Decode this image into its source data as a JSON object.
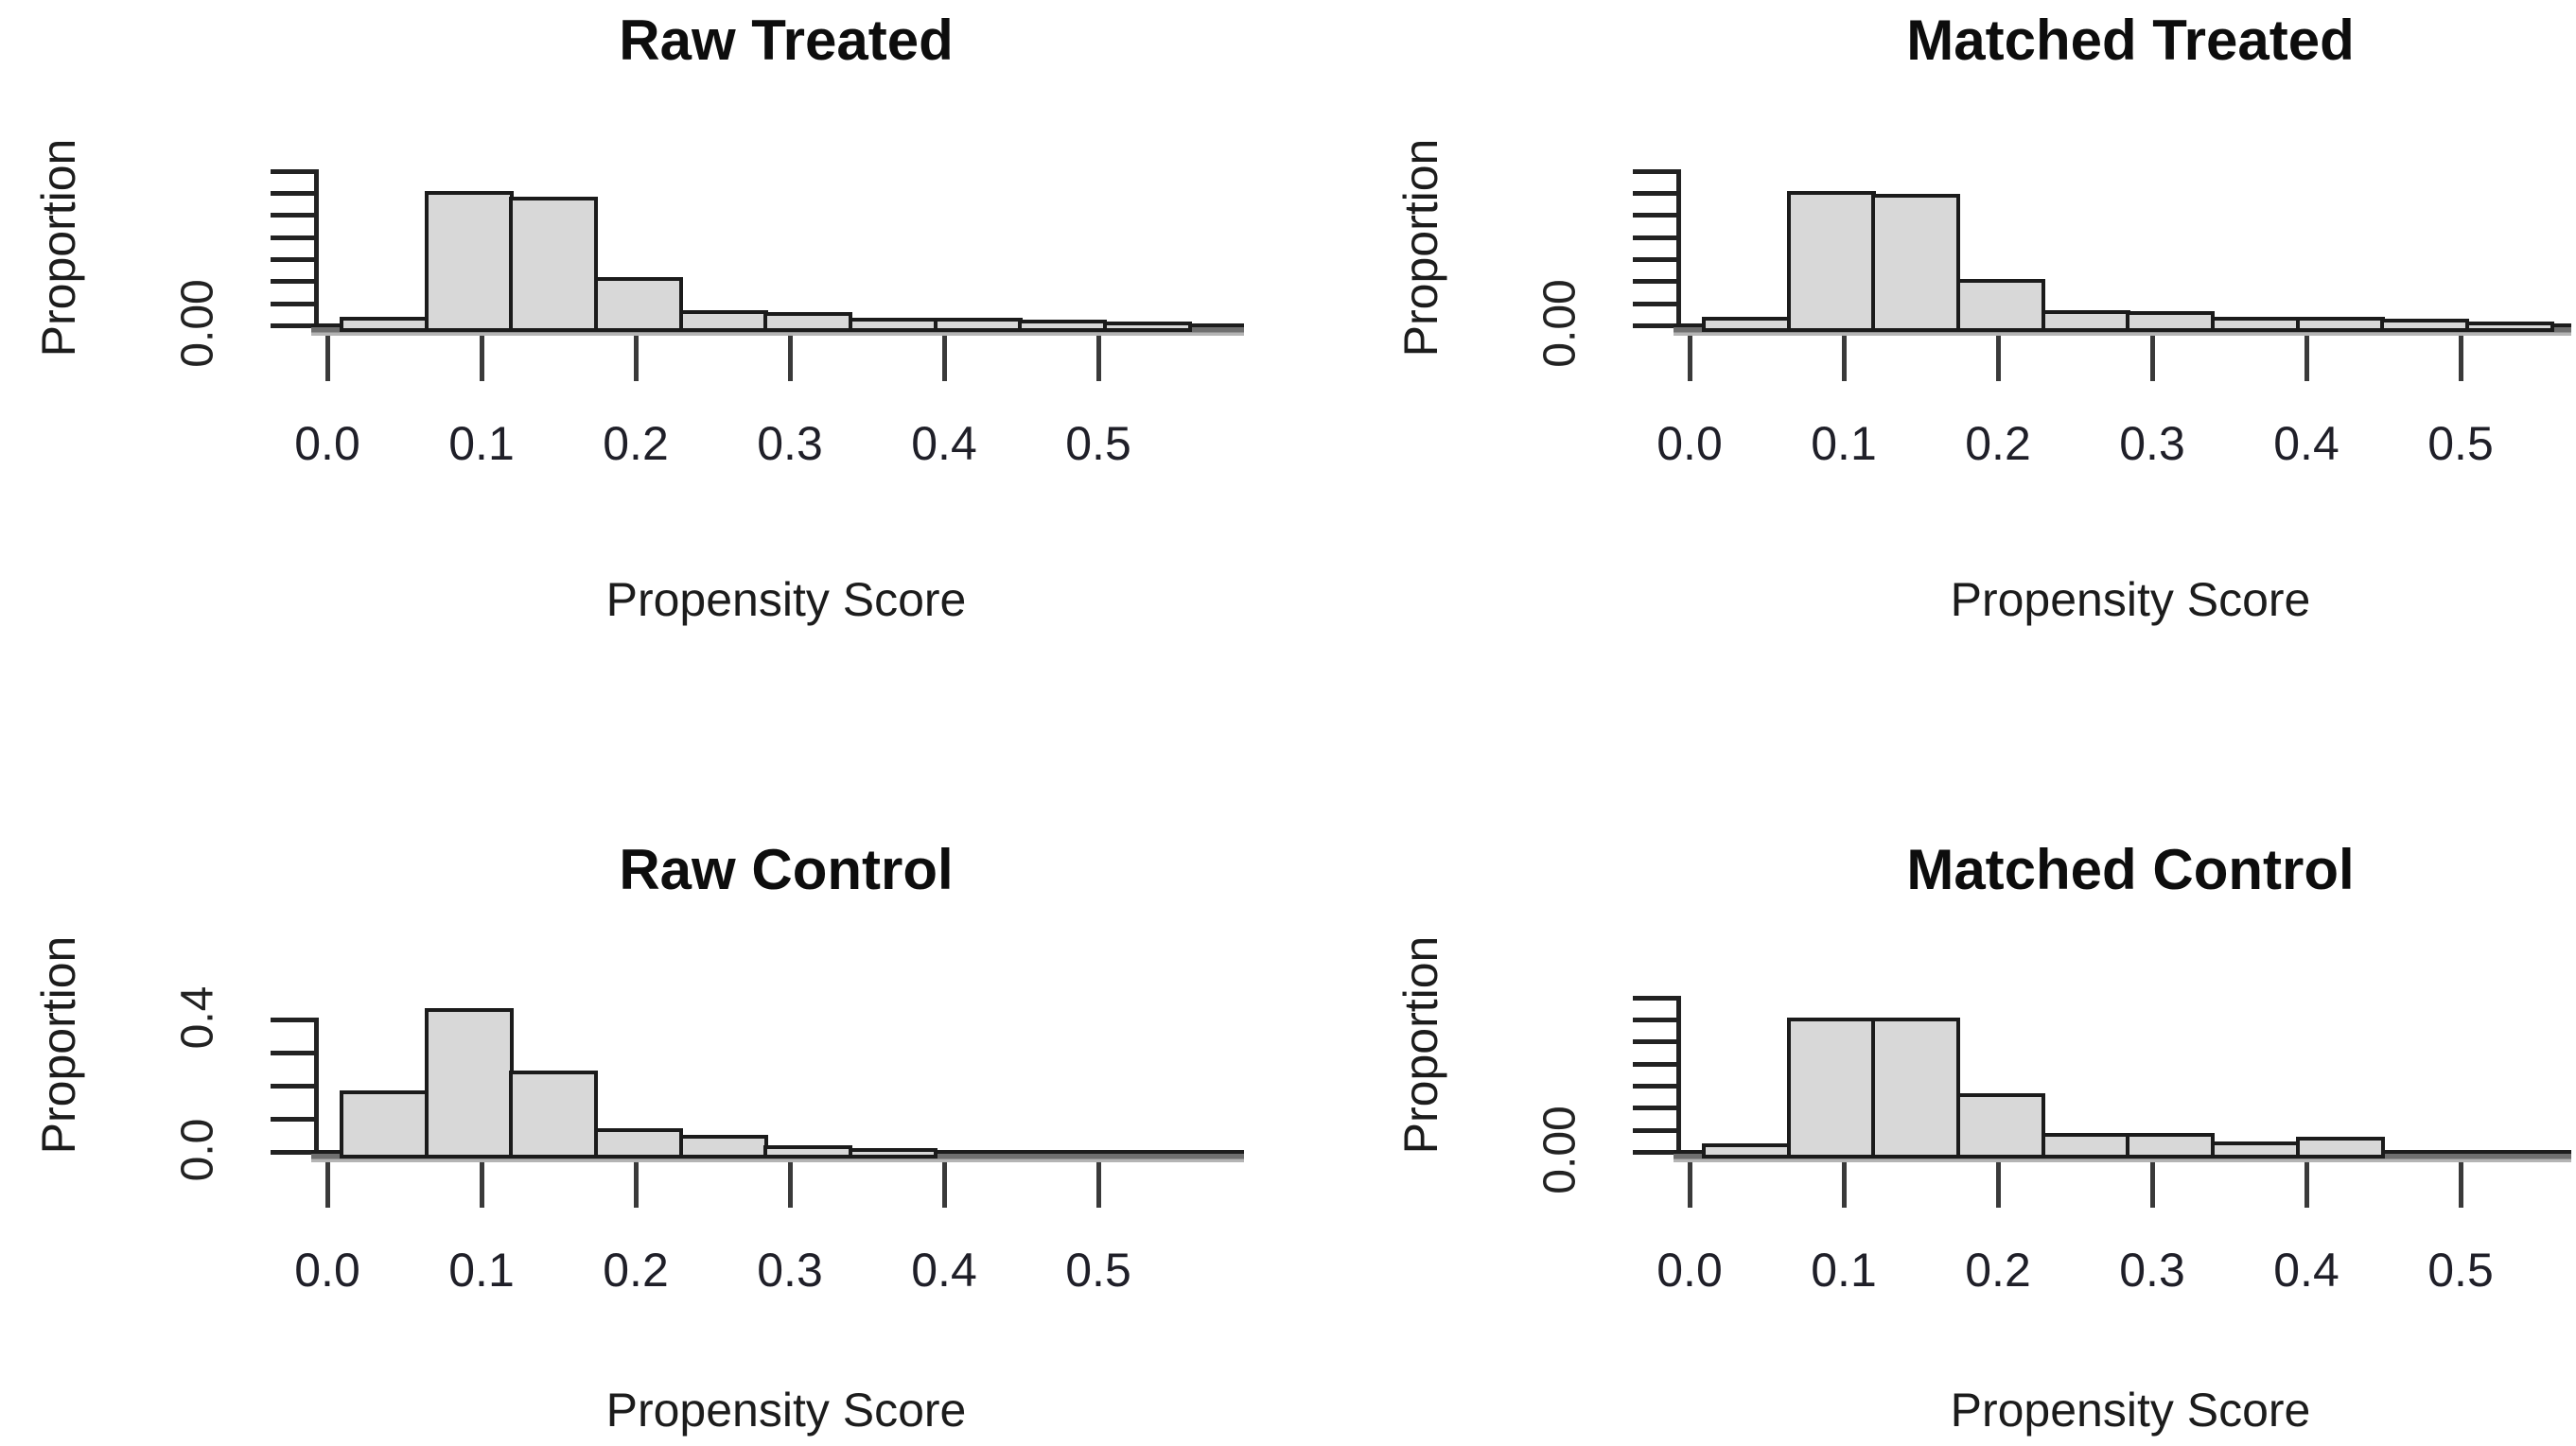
{
  "colors": {
    "background": "#ffffff",
    "bar_fill": "#d8d8d8",
    "bar_border": "#1b1b1b",
    "axis_band_dark": "#1d1d1d",
    "axis_band_mid": "#6f6f6f",
    "text": "#1c1c1c"
  },
  "chart_data": [
    {
      "type": "bar",
      "id": "raw-treated",
      "title": "Raw Treated",
      "xlabel": "Propensity Score",
      "ylabel": "Proportion",
      "bins": {
        "edges_start": 0.008,
        "width": 0.055,
        "count": 10
      },
      "values": [
        0.015,
        0.3,
        0.287,
        0.105,
        0.03,
        0.026,
        0.013,
        0.013,
        0.009,
        0.004
      ],
      "x_ticks": [
        {
          "label": "0.0",
          "value": 0.0
        },
        {
          "label": "0.1",
          "value": 0.1
        },
        {
          "label": "0.2",
          "value": 0.2
        },
        {
          "label": "0.3",
          "value": 0.3
        },
        {
          "label": "0.4",
          "value": 0.4
        },
        {
          "label": "0.5",
          "value": 0.5
        }
      ],
      "y_ticks": {
        "values": [
          0,
          0.05,
          0.1,
          0.15,
          0.2,
          0.25,
          0.3,
          0.35
        ],
        "labels": [
          {
            "text": "0.00",
            "value": 0
          }
        ]
      },
      "xlim": [
        0,
        0.58
      ],
      "ylim": [
        0,
        0.36
      ],
      "grid": false,
      "legend": false
    },
    {
      "type": "bar",
      "id": "matched-treated",
      "title": "Matched Treated",
      "xlabel": "Propensity Score",
      "ylabel": "Proportion",
      "bins": {
        "edges_start": 0.008,
        "width": 0.055,
        "count": 10
      },
      "values": [
        0.015,
        0.3,
        0.293,
        0.1,
        0.03,
        0.028,
        0.015,
        0.015,
        0.01,
        0.005
      ],
      "x_ticks": [
        {
          "label": "0.0",
          "value": 0.0
        },
        {
          "label": "0.1",
          "value": 0.1
        },
        {
          "label": "0.2",
          "value": 0.2
        },
        {
          "label": "0.3",
          "value": 0.3
        },
        {
          "label": "0.4",
          "value": 0.4
        },
        {
          "label": "0.5",
          "value": 0.5
        }
      ],
      "y_ticks": {
        "values": [
          0,
          0.05,
          0.1,
          0.15,
          0.2,
          0.25,
          0.3,
          0.35
        ],
        "labels": [
          {
            "text": "0.00",
            "value": 0
          }
        ]
      },
      "xlim": [
        0,
        0.58
      ],
      "ylim": [
        0,
        0.36
      ],
      "grid": false,
      "legend": false
    },
    {
      "type": "bar",
      "id": "raw-control",
      "title": "Raw Control",
      "xlabel": "Propensity Score",
      "ylabel": "Proportion",
      "bins": {
        "edges_start": 0.008,
        "width": 0.055,
        "count": 10
      },
      "values": [
        0.18,
        0.43,
        0.24,
        0.067,
        0.047,
        0.013,
        0.006,
        0,
        0,
        0
      ],
      "x_ticks": [
        {
          "label": "0.0",
          "value": 0.0
        },
        {
          "label": "0.1",
          "value": 0.1
        },
        {
          "label": "0.2",
          "value": 0.2
        },
        {
          "label": "0.3",
          "value": 0.3
        },
        {
          "label": "0.4",
          "value": 0.4
        },
        {
          "label": "0.5",
          "value": 0.5
        }
      ],
      "y_ticks": {
        "values": [
          0,
          0.1,
          0.2,
          0.3,
          0.4
        ],
        "labels": [
          {
            "text": "0.0",
            "value": 0
          },
          {
            "text": "0.4",
            "value": 0.4
          }
        ]
      },
      "xlim": [
        0,
        0.58
      ],
      "ylim": [
        0,
        0.47
      ],
      "grid": false,
      "legend": false
    },
    {
      "type": "bar",
      "id": "matched-control",
      "title": "Matched Control",
      "xlabel": "Propensity Score",
      "ylabel": "Proportion",
      "bins": {
        "edges_start": 0.008,
        "width": 0.055,
        "count": 10
      },
      "values": [
        0.015,
        0.3,
        0.3,
        0.129,
        0.038,
        0.038,
        0.019,
        0.03,
        0,
        0
      ],
      "x_ticks": [
        {
          "label": "0.0",
          "value": 0.0
        },
        {
          "label": "0.1",
          "value": 0.1
        },
        {
          "label": "0.2",
          "value": 0.2
        },
        {
          "label": "0.3",
          "value": 0.3
        },
        {
          "label": "0.4",
          "value": 0.4
        },
        {
          "label": "0.5",
          "value": 0.5
        }
      ],
      "y_ticks": {
        "values": [
          0,
          0.05,
          0.1,
          0.15,
          0.2,
          0.25,
          0.3,
          0.35
        ],
        "labels": [
          {
            "text": "0.00",
            "value": 0
          }
        ]
      },
      "xlim": [
        0,
        0.58
      ],
      "ylim": [
        0,
        0.36
      ],
      "grid": false,
      "legend": false
    }
  ]
}
